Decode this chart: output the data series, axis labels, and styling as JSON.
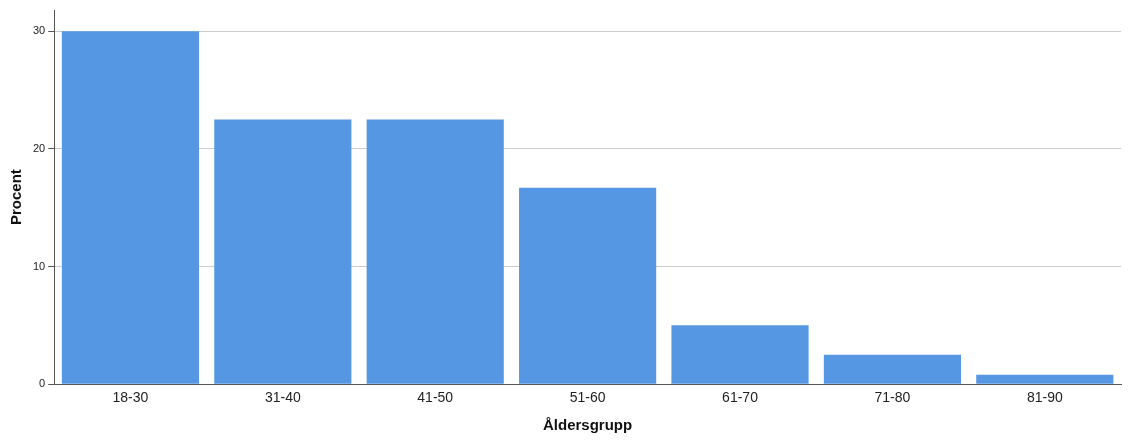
{
  "chart_data": {
    "type": "bar",
    "xlabel": "Åldersgrupp",
    "ylabel": "Procent",
    "categories": [
      "18-30",
      "31-40",
      "41-50",
      "51-60",
      "61-70",
      "71-80",
      "81-90"
    ],
    "values": [
      30,
      22.5,
      22.5,
      16.7,
      5,
      2.5,
      0.8
    ],
    "color": "#5597e3",
    "ylim": [
      0,
      31.8
    ],
    "yticks": [
      0,
      10,
      20,
      30
    ],
    "grid": "y"
  }
}
